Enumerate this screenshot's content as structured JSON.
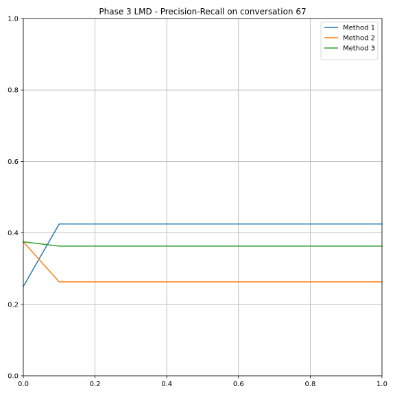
{
  "chart_data": {
    "type": "line",
    "title": "Phase 3 LMD - Precision-Recall on conversation 67",
    "xlabel": "",
    "ylabel": "",
    "xlim": [
      0,
      1
    ],
    "ylim": [
      0,
      1
    ],
    "x_ticks": [
      "0.0",
      "0.2",
      "0.4",
      "0.6",
      "0.8",
      "1.0"
    ],
    "y_ticks": [
      "0.0",
      "0.2",
      "0.4",
      "0.6",
      "0.8",
      "1.0"
    ],
    "grid": true,
    "legend_position": "top-right",
    "series": [
      {
        "name": "Method 1",
        "color": "#1f77b4",
        "x": [
          0.0,
          0.1,
          1.0
        ],
        "y": [
          0.25,
          0.425,
          0.425
        ]
      },
      {
        "name": "Method 2",
        "color": "#ff7f0e",
        "x": [
          0.0,
          0.1,
          1.0
        ],
        "y": [
          0.375,
          0.263,
          0.263
        ]
      },
      {
        "name": "Method 3",
        "color": "#2ca02c",
        "x": [
          0.0,
          0.1,
          1.0
        ],
        "y": [
          0.375,
          0.363,
          0.363
        ]
      }
    ]
  }
}
